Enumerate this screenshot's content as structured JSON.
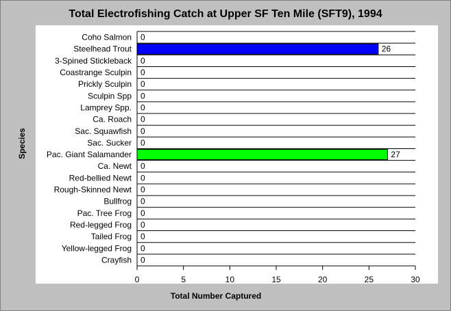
{
  "chart_data": {
    "type": "bar",
    "orientation": "horizontal",
    "title": "Total Electrofishing Catch at Upper SF Ten Mile (SFT9), 1994",
    "xlabel": "Total Number Captured",
    "ylabel": "Species",
    "xlim": [
      0,
      30
    ],
    "xticks": [
      0,
      5,
      10,
      15,
      20,
      25,
      30
    ],
    "grid": "horizontal",
    "categories": [
      "Coho Salmon",
      "Steelhead Trout",
      "3-Spined Stickleback",
      "Coastrange Sculpin",
      "Prickly Sculpin",
      "Sculpin Spp",
      "Lamprey Spp.",
      "Ca. Roach",
      "Sac. Squawfish",
      "Sac. Sucker",
      "Pac. Giant Salamander",
      "Ca. Newt",
      "Red-bellied Newt",
      "Rough-Skinned Newt",
      "Bullfrog",
      "Pac. Tree Frog",
      "Red-legged Frog",
      "Tailed Frog",
      "Yellow-legged Frog",
      "Crayfish"
    ],
    "values": [
      0,
      26,
      0,
      0,
      0,
      0,
      0,
      0,
      0,
      0,
      27,
      0,
      0,
      0,
      0,
      0,
      0,
      0,
      0,
      0
    ],
    "bar_colors": [
      "#0000ff",
      "#0000ff",
      "#0000ff",
      "#0000ff",
      "#0000ff",
      "#0000ff",
      "#0000ff",
      "#0000ff",
      "#0000ff",
      "#0000ff",
      "#00ff00",
      "#00ff00",
      "#00ff00",
      "#00ff00",
      "#00ff00",
      "#00ff00",
      "#00ff00",
      "#00ff00",
      "#00ff00",
      "#00ff00"
    ],
    "background": "#c0c0c0",
    "plot_background": "#ffffff"
  }
}
